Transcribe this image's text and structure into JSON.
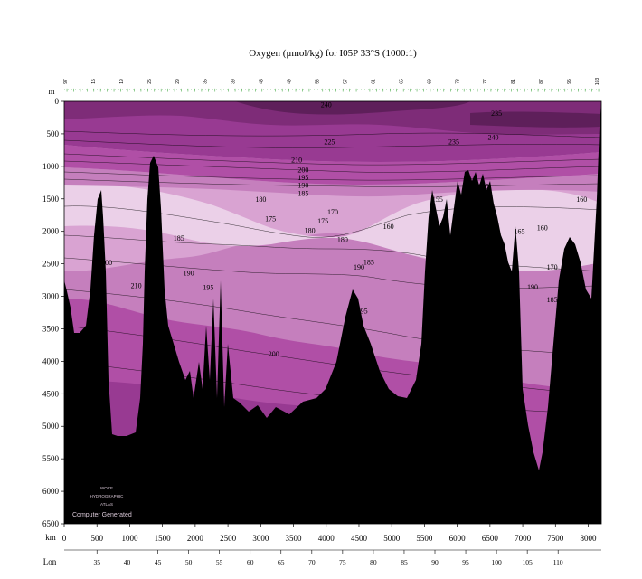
{
  "chart_data": {
    "type": "contour",
    "title": "Oxygen (μmol/kg) for I05P 33°S (1000:1)",
    "ylabel": "m",
    "xlabel": "km",
    "lon_label": "Lon",
    "ylim": [
      6500,
      0
    ],
    "xlim": [
      0,
      8200
    ],
    "y_ticks": [
      "0",
      "500",
      "1000",
      "1500",
      "2000",
      "2500",
      "3000",
      "3500",
      "4000",
      "4500",
      "5000",
      "5500",
      "6000",
      "6500"
    ],
    "x_ticks": [
      "0",
      "500",
      "1000",
      "1500",
      "2000",
      "2500",
      "3000",
      "3500",
      "4000",
      "4500",
      "5000",
      "5500",
      "6000",
      "6500",
      "7000",
      "7500",
      "8000"
    ],
    "lon_ticks": [
      {
        "lon": 35,
        "km": 500
      },
      {
        "lon": 40,
        "km": 960
      },
      {
        "lon": 45,
        "km": 1430
      },
      {
        "lon": 50,
        "km": 1900
      },
      {
        "lon": 55,
        "km": 2370
      },
      {
        "lon": 60,
        "km": 2840
      },
      {
        "lon": 65,
        "km": 3310
      },
      {
        "lon": 70,
        "km": 3780
      },
      {
        "lon": 75,
        "km": 4250
      },
      {
        "lon": 80,
        "km": 4720
      },
      {
        "lon": 85,
        "km": 5190
      },
      {
        "lon": 90,
        "km": 5660
      },
      {
        "lon": 95,
        "km": 6130
      },
      {
        "lon": 100,
        "km": 6600
      },
      {
        "lon": 105,
        "km": 7070
      },
      {
        "lon": 110,
        "km": 7540
      }
    ],
    "contour_labels": [
      {
        "text": "240",
        "km": 4000,
        "depth": 50
      },
      {
        "text": "235",
        "km": 6600,
        "depth": 180
      },
      {
        "text": "240",
        "km": 6550,
        "depth": 550
      },
      {
        "text": "225",
        "km": 4050,
        "depth": 620
      },
      {
        "text": "235",
        "km": 5950,
        "depth": 620
      },
      {
        "text": "210",
        "km": 3550,
        "depth": 900
      },
      {
        "text": "200",
        "km": 3650,
        "depth": 1050
      },
      {
        "text": "195",
        "km": 3650,
        "depth": 1170
      },
      {
        "text": "190",
        "km": 3650,
        "depth": 1290
      },
      {
        "text": "185",
        "km": 3650,
        "depth": 1410
      },
      {
        "text": "180",
        "km": 3000,
        "depth": 1500
      },
      {
        "text": "170",
        "km": 4100,
        "depth": 1700
      },
      {
        "text": "155",
        "km": 5700,
        "depth": 1500
      },
      {
        "text": "155",
        "km": 6400,
        "depth": 1300
      },
      {
        "text": "160",
        "km": 7900,
        "depth": 1500
      },
      {
        "text": "175",
        "km": 3150,
        "depth": 1800
      },
      {
        "text": "175",
        "km": 3950,
        "depth": 1840
      },
      {
        "text": "160",
        "km": 4950,
        "depth": 1920
      },
      {
        "text": "180",
        "km": 3750,
        "depth": 1980
      },
      {
        "text": "180",
        "km": 4250,
        "depth": 2120
      },
      {
        "text": "165",
        "km": 6950,
        "depth": 2000
      },
      {
        "text": "160",
        "km": 7300,
        "depth": 1940
      },
      {
        "text": "185",
        "km": 1750,
        "depth": 2100
      },
      {
        "text": "185",
        "km": 4650,
        "depth": 2470
      },
      {
        "text": "190",
        "km": 4500,
        "depth": 2550
      },
      {
        "text": "170",
        "km": 7450,
        "depth": 2550
      },
      {
        "text": "190",
        "km": 1900,
        "depth": 2640
      },
      {
        "text": "200",
        "km": 650,
        "depth": 2480
      },
      {
        "text": "210",
        "km": 1100,
        "depth": 2830
      },
      {
        "text": "195",
        "km": 2200,
        "depth": 2860
      },
      {
        "text": "190",
        "km": 7150,
        "depth": 2850
      },
      {
        "text": "185",
        "km": 7450,
        "depth": 3050
      },
      {
        "text": "195",
        "km": 4550,
        "depth": 3220
      },
      {
        "text": "200",
        "km": 3200,
        "depth": 3880
      }
    ],
    "station_numbers": [
      "97",
      "15",
      "19",
      "25",
      "29",
      "35",
      "39",
      "45",
      "49",
      "53",
      "57",
      "61",
      "65",
      "69",
      "73",
      "77",
      "81",
      "87",
      "95",
      "103"
    ],
    "grid": false,
    "legend": "none"
  },
  "watermark": {
    "lines": [
      "WOCE",
      "HYDROGRAPHIC",
      "ATLAS"
    ],
    "note": "Computer Generated"
  },
  "colors": {
    "c240": "#5e1f5a",
    "c230": "#7e2c78",
    "c215": "#983a92",
    "c200": "#b04fa6",
    "c190": "#c57fbd",
    "c180": "#d9a3d2",
    "c170": "#ebd0e8",
    "bathymetry": "#000000"
  }
}
